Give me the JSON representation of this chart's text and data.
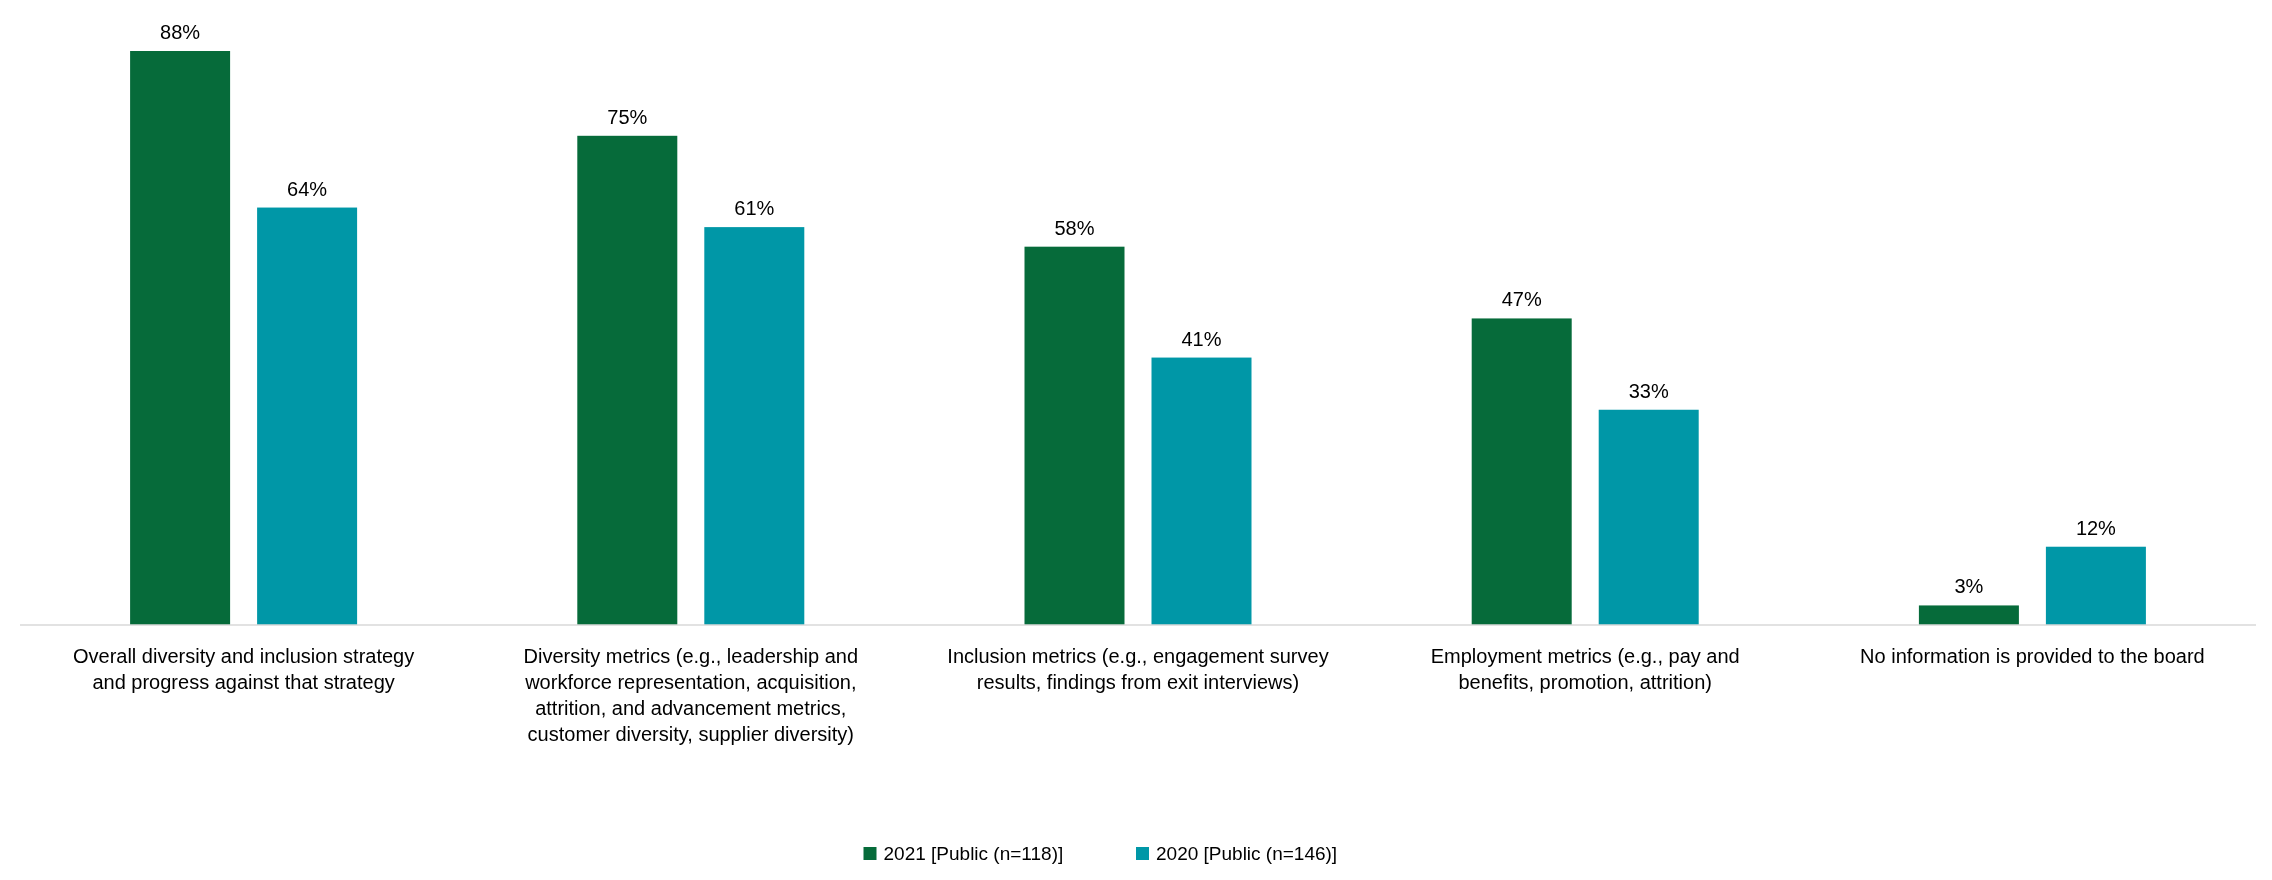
{
  "chart_data": {
    "type": "bar",
    "categories": [
      "Overall diversity and inclusion strategy and progress against that strategy",
      "Diversity metrics (e.g., leadership and workforce representation, acquisition, attrition, and advancement metrics, customer diversity, supplier diversity)",
      "Inclusion metrics (e.g., engagement survey results, findings from exit interviews)",
      "Employment metrics (e.g., pay and benefits, promotion, attrition)",
      "No information is provided to the board"
    ],
    "series": [
      {
        "name": "2021 [Public (n=118)]",
        "color": "#066b3a",
        "values": [
          88,
          75,
          58,
          47,
          3
        ],
        "value_labels": [
          "88%",
          "75%",
          "58%",
          "47%",
          "3%"
        ]
      },
      {
        "name": "2020 [Public (n=146)]",
        "color": "#0097a7",
        "values": [
          64,
          61,
          41,
          33,
          12
        ],
        "value_labels": [
          "64%",
          "61%",
          "41%",
          "33%",
          "12%"
        ]
      }
    ],
    "legend": "bottom"
  }
}
